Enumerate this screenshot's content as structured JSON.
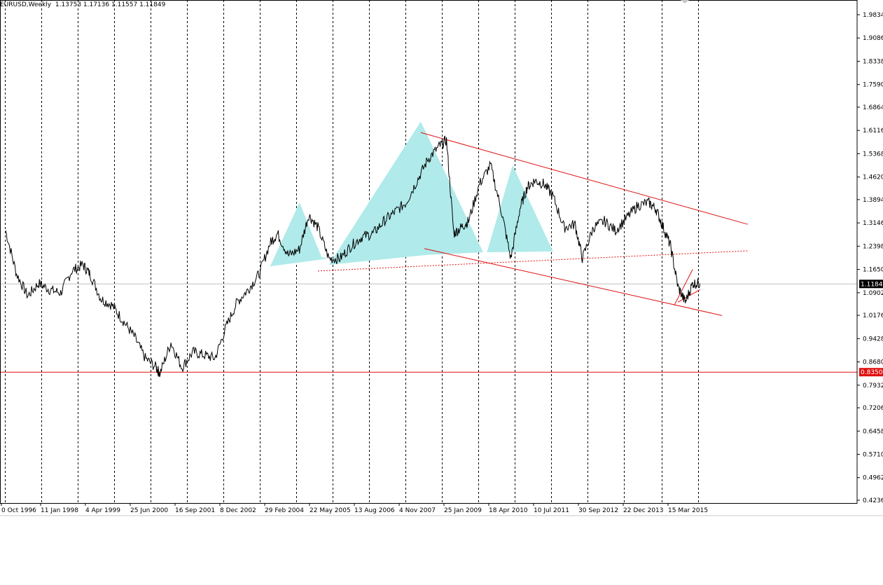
{
  "header": {
    "symbol": "EURUSD,Weekly",
    "ohlc": "1.13753 1.17136 1.11557 1.11849"
  },
  "colors": {
    "background": "#ffffff",
    "price_line": "#000000",
    "grid": "#000000",
    "pattern_fill": "#b0eaea",
    "trendline": "#e01010",
    "support_line": "#e01010",
    "current_price_label_bg": "#000000",
    "support_label_bg": "#e01010"
  },
  "chart_data": {
    "type": "line",
    "title": "",
    "ylim": [
      0.4236,
      2.01
    ],
    "yticks": [
      "1.98340",
      "1.90860",
      "1.83380",
      "1.75900",
      "1.68640",
      "1.61160",
      "1.53680",
      "1.46200",
      "1.38940",
      "1.31460",
      "1.23980",
      "1.16500",
      "1.09020",
      "1.01760",
      "0.94280",
      "0.86800",
      "0.79320",
      "0.72060",
      "0.64580",
      "0.57100",
      "0.49620",
      "0.42360"
    ],
    "xticks": [
      "0 Oct 1996",
      "11 Jan 1998",
      "4 Apr 1999",
      "25 Jun 2000",
      "16 Sep 2001",
      "8 Dec 2002",
      "29 Feb 2004",
      "22 May 2005",
      "13 Aug 2006",
      "4 Nov 2007",
      "25 Jan 2009",
      "18 Apr 2010",
      "10 Jul 2011",
      "30 Sep 2012",
      "22 Dec 2013",
      "15 Mar 2015"
    ],
    "current_price": "1.11849",
    "support_price": "0.83507",
    "series": [
      {
        "x": [
          1996.7,
          1997.0,
          1997.3,
          1997.6,
          1997.9,
          1998.2,
          1998.5,
          1998.8,
          1999.0,
          1999.3,
          1999.6,
          1999.9,
          2000.2,
          2000.5,
          2000.8,
          2000.9,
          2001.2,
          2001.5,
          2001.8,
          2002.1,
          2002.4,
          2002.7,
          2003.0,
          2003.3,
          2003.6,
          2003.9,
          2004.1,
          2004.4,
          2004.7,
          2004.95,
          2005.2,
          2005.5,
          2005.8,
          2006.1,
          2006.4,
          2006.7,
          2007.0,
          2007.3,
          2007.6,
          2007.9,
          2008.2,
          2008.5,
          2008.7,
          2008.9,
          2009.1,
          2009.3,
          2009.6,
          2009.9,
          2010.2,
          2010.45,
          2010.7,
          2010.9,
          2011.1,
          2011.35,
          2011.6,
          2011.9,
          2012.2,
          2012.4,
          2012.7,
          2013.0,
          2013.3,
          2013.6,
          2013.9,
          2014.2,
          2014.4,
          2014.6,
          2014.8,
          2015.0,
          2015.2,
          2015.4,
          2015.6
        ],
        "values": [
          1.29,
          1.15,
          1.08,
          1.12,
          1.1,
          1.09,
          1.16,
          1.18,
          1.15,
          1.07,
          1.05,
          1.0,
          0.95,
          0.88,
          0.85,
          0.83,
          0.93,
          0.85,
          0.9,
          0.89,
          0.88,
          0.98,
          1.06,
          1.1,
          1.15,
          1.25,
          1.28,
          1.21,
          1.23,
          1.34,
          1.3,
          1.2,
          1.2,
          1.24,
          1.27,
          1.28,
          1.32,
          1.35,
          1.38,
          1.45,
          1.52,
          1.56,
          1.58,
          1.28,
          1.3,
          1.32,
          1.44,
          1.5,
          1.35,
          1.2,
          1.36,
          1.43,
          1.45,
          1.44,
          1.4,
          1.3,
          1.31,
          1.2,
          1.3,
          1.32,
          1.29,
          1.33,
          1.37,
          1.38,
          1.36,
          1.3,
          1.24,
          1.11,
          1.06,
          1.12,
          1.12
        ]
      }
    ]
  }
}
